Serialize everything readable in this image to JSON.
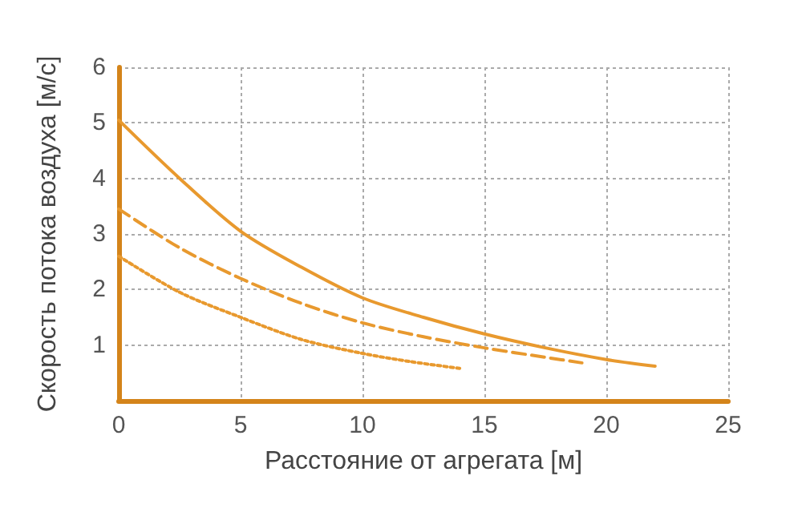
{
  "chart_data": {
    "type": "line",
    "xlabel": "Расстояние от агрегата [м]",
    "ylabel": "Скорость потока воздуха [м/с]",
    "xlim": [
      0,
      25
    ],
    "xticks": [
      0,
      5,
      10,
      15,
      20,
      25
    ],
    "ylim": [
      0,
      6
    ],
    "yticks": [
      {
        "value": 0,
        "label": null
      },
      1,
      2,
      3,
      4,
      5,
      6
    ],
    "grid": true,
    "marker": "none",
    "series": [
      {
        "color": "#e8992e",
        "line_style": "solid",
        "x": [
          0,
          2.5,
          5,
          7.5,
          10,
          12.5,
          15,
          17.5,
          20,
          22
        ],
        "values": [
          5.05,
          4.0,
          3.05,
          2.4,
          1.85,
          1.5,
          1.2,
          0.95,
          0.74,
          0.62
        ]
      },
      {
        "color": "#e8992e",
        "line_style": "dashed",
        "x": [
          0,
          2.5,
          5,
          7.5,
          10,
          12.5,
          15,
          17.5,
          19
        ],
        "values": [
          3.45,
          2.75,
          2.2,
          1.75,
          1.4,
          1.15,
          0.95,
          0.78,
          0.68
        ]
      },
      {
        "color": "#e8992e",
        "line_style": "dotted",
        "x": [
          0,
          2.5,
          5,
          7.5,
          10,
          12,
          14
        ],
        "values": [
          2.6,
          1.95,
          1.5,
          1.1,
          0.85,
          0.7,
          0.58
        ]
      }
    ]
  }
}
